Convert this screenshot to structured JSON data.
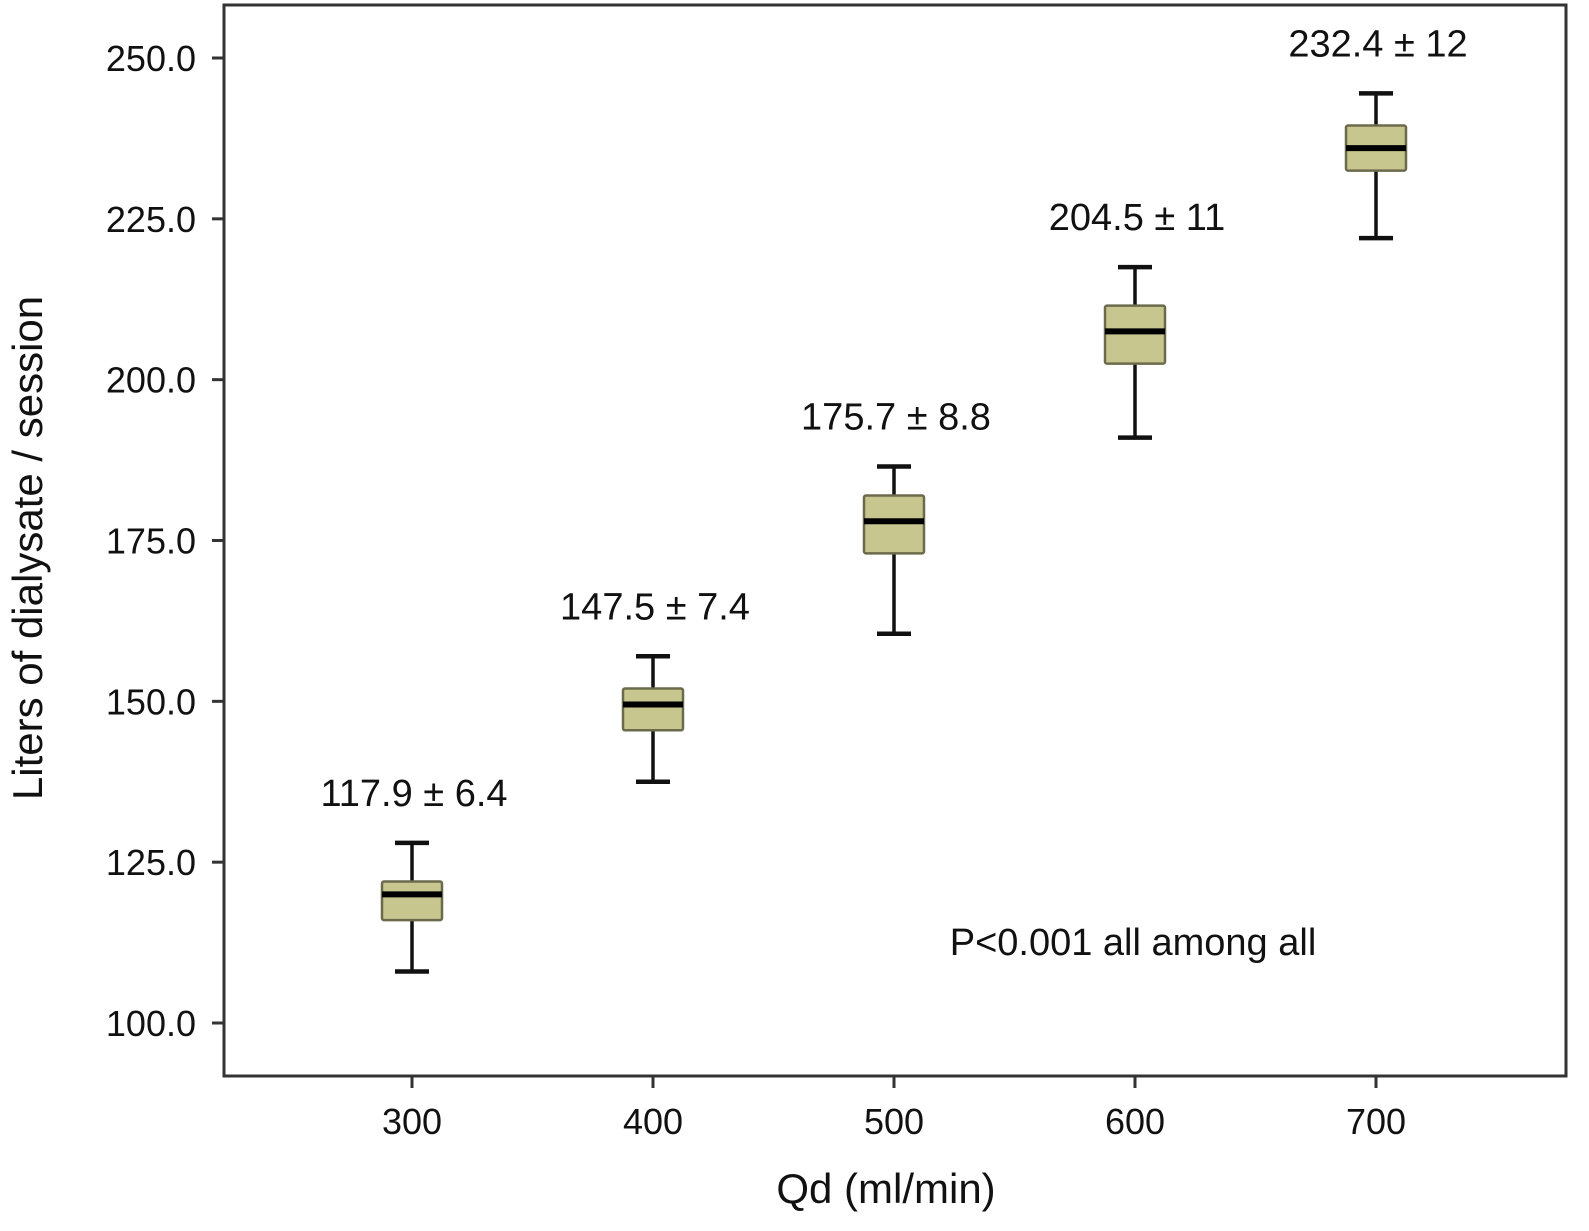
{
  "chart_data": {
    "type": "box",
    "xlabel": "Qd (ml/min)",
    "ylabel": "Liters of dialysate / session",
    "categories": [
      "300",
      "400",
      "500",
      "600",
      "700"
    ],
    "ylim": [
      92,
      259
    ],
    "yticks": [
      100.0,
      125.0,
      150.0,
      175.0,
      200.0,
      225.0,
      250.0
    ],
    "ytick_labels": [
      "100.0",
      "125.0",
      "150.0",
      "175.0",
      "200.0",
      "225.0",
      "250.0"
    ],
    "grid": false,
    "box_color": "#c8c68f",
    "boxes": [
      {
        "x": "300",
        "min": 108,
        "q1": 116,
        "median": 120,
        "q3": 122,
        "max": 128,
        "label": "117.9 ± 6.4"
      },
      {
        "x": "400",
        "min": 137.5,
        "q1": 145.5,
        "median": 149.5,
        "q3": 152,
        "max": 157,
        "label": "147.5 ± 7.4"
      },
      {
        "x": "500",
        "min": 160.5,
        "q1": 173,
        "median": 178,
        "q3": 182,
        "max": 186.5,
        "label": "175.7 ± 8.8"
      },
      {
        "x": "600",
        "min": 191,
        "q1": 202.5,
        "median": 207.5,
        "q3": 211.5,
        "max": 217.5,
        "label": "204.5 ± 11"
      },
      {
        "x": "700",
        "min": 222,
        "q1": 232.5,
        "median": 236,
        "q3": 239.5,
        "max": 244.5,
        "label": "232.4 ± 12"
      }
    ],
    "annotation": "P<0.001 all among all"
  }
}
